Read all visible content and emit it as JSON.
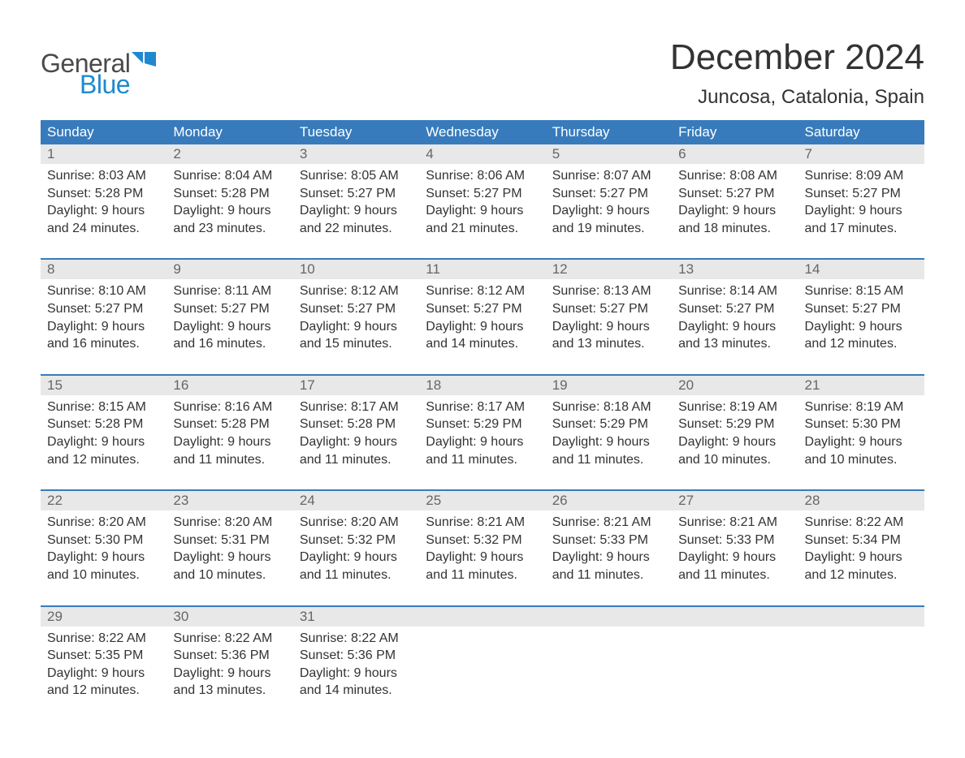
{
  "brand": {
    "text1": "General",
    "text2": "Blue"
  },
  "title": "December 2024",
  "location": "Juncosa, Catalonia, Spain",
  "colors": {
    "brand_blue": "#377bbc",
    "header_row_blue": "#377bbc",
    "accent_line_blue": "#377bbc",
    "day_header_gray": "#e8e8e8",
    "logo_dark": "#4a4a4a",
    "logo_blue": "#1f89cf",
    "text_dark": "#333333",
    "background": "#ffffff"
  },
  "typography": {
    "title_fontsize_pt": 33,
    "location_fontsize_pt": 18,
    "weekday_header_fontsize_pt": 13,
    "day_number_fontsize_pt": 13,
    "body_fontsize_pt": 12,
    "font_family": "Arial"
  },
  "calendar": {
    "type": "table",
    "columns": [
      "Sunday",
      "Monday",
      "Tuesday",
      "Wednesday",
      "Thursday",
      "Friday",
      "Saturday"
    ],
    "weeks": [
      [
        {
          "day": 1,
          "sunrise": "8:03 AM",
          "sunset": "5:28 PM",
          "daylight_hours": 9,
          "daylight_minutes": 24
        },
        {
          "day": 2,
          "sunrise": "8:04 AM",
          "sunset": "5:28 PM",
          "daylight_hours": 9,
          "daylight_minutes": 23
        },
        {
          "day": 3,
          "sunrise": "8:05 AM",
          "sunset": "5:27 PM",
          "daylight_hours": 9,
          "daylight_minutes": 22
        },
        {
          "day": 4,
          "sunrise": "8:06 AM",
          "sunset": "5:27 PM",
          "daylight_hours": 9,
          "daylight_minutes": 21
        },
        {
          "day": 5,
          "sunrise": "8:07 AM",
          "sunset": "5:27 PM",
          "daylight_hours": 9,
          "daylight_minutes": 19
        },
        {
          "day": 6,
          "sunrise": "8:08 AM",
          "sunset": "5:27 PM",
          "daylight_hours": 9,
          "daylight_minutes": 18
        },
        {
          "day": 7,
          "sunrise": "8:09 AM",
          "sunset": "5:27 PM",
          "daylight_hours": 9,
          "daylight_minutes": 17
        }
      ],
      [
        {
          "day": 8,
          "sunrise": "8:10 AM",
          "sunset": "5:27 PM",
          "daylight_hours": 9,
          "daylight_minutes": 16
        },
        {
          "day": 9,
          "sunrise": "8:11 AM",
          "sunset": "5:27 PM",
          "daylight_hours": 9,
          "daylight_minutes": 16
        },
        {
          "day": 10,
          "sunrise": "8:12 AM",
          "sunset": "5:27 PM",
          "daylight_hours": 9,
          "daylight_minutes": 15
        },
        {
          "day": 11,
          "sunrise": "8:12 AM",
          "sunset": "5:27 PM",
          "daylight_hours": 9,
          "daylight_minutes": 14
        },
        {
          "day": 12,
          "sunrise": "8:13 AM",
          "sunset": "5:27 PM",
          "daylight_hours": 9,
          "daylight_minutes": 13
        },
        {
          "day": 13,
          "sunrise": "8:14 AM",
          "sunset": "5:27 PM",
          "daylight_hours": 9,
          "daylight_minutes": 13
        },
        {
          "day": 14,
          "sunrise": "8:15 AM",
          "sunset": "5:27 PM",
          "daylight_hours": 9,
          "daylight_minutes": 12
        }
      ],
      [
        {
          "day": 15,
          "sunrise": "8:15 AM",
          "sunset": "5:28 PM",
          "daylight_hours": 9,
          "daylight_minutes": 12
        },
        {
          "day": 16,
          "sunrise": "8:16 AM",
          "sunset": "5:28 PM",
          "daylight_hours": 9,
          "daylight_minutes": 11
        },
        {
          "day": 17,
          "sunrise": "8:17 AM",
          "sunset": "5:28 PM",
          "daylight_hours": 9,
          "daylight_minutes": 11
        },
        {
          "day": 18,
          "sunrise": "8:17 AM",
          "sunset": "5:29 PM",
          "daylight_hours": 9,
          "daylight_minutes": 11
        },
        {
          "day": 19,
          "sunrise": "8:18 AM",
          "sunset": "5:29 PM",
          "daylight_hours": 9,
          "daylight_minutes": 11
        },
        {
          "day": 20,
          "sunrise": "8:19 AM",
          "sunset": "5:29 PM",
          "daylight_hours": 9,
          "daylight_minutes": 10
        },
        {
          "day": 21,
          "sunrise": "8:19 AM",
          "sunset": "5:30 PM",
          "daylight_hours": 9,
          "daylight_minutes": 10
        }
      ],
      [
        {
          "day": 22,
          "sunrise": "8:20 AM",
          "sunset": "5:30 PM",
          "daylight_hours": 9,
          "daylight_minutes": 10
        },
        {
          "day": 23,
          "sunrise": "8:20 AM",
          "sunset": "5:31 PM",
          "daylight_hours": 9,
          "daylight_minutes": 10
        },
        {
          "day": 24,
          "sunrise": "8:20 AM",
          "sunset": "5:32 PM",
          "daylight_hours": 9,
          "daylight_minutes": 11
        },
        {
          "day": 25,
          "sunrise": "8:21 AM",
          "sunset": "5:32 PM",
          "daylight_hours": 9,
          "daylight_minutes": 11
        },
        {
          "day": 26,
          "sunrise": "8:21 AM",
          "sunset": "5:33 PM",
          "daylight_hours": 9,
          "daylight_minutes": 11
        },
        {
          "day": 27,
          "sunrise": "8:21 AM",
          "sunset": "5:33 PM",
          "daylight_hours": 9,
          "daylight_minutes": 11
        },
        {
          "day": 28,
          "sunrise": "8:22 AM",
          "sunset": "5:34 PM",
          "daylight_hours": 9,
          "daylight_minutes": 12
        }
      ],
      [
        {
          "day": 29,
          "sunrise": "8:22 AM",
          "sunset": "5:35 PM",
          "daylight_hours": 9,
          "daylight_minutes": 12
        },
        {
          "day": 30,
          "sunrise": "8:22 AM",
          "sunset": "5:36 PM",
          "daylight_hours": 9,
          "daylight_minutes": 13
        },
        {
          "day": 31,
          "sunrise": "8:22 AM",
          "sunset": "5:36 PM",
          "daylight_hours": 9,
          "daylight_minutes": 14
        },
        null,
        null,
        null,
        null
      ]
    ]
  },
  "labels": {
    "sunrise_prefix": "Sunrise: ",
    "sunset_prefix": "Sunset: ",
    "daylight_prefix": "Daylight: ",
    "hours_word": " hours",
    "and_word": "and ",
    "minutes_word": " minutes."
  }
}
